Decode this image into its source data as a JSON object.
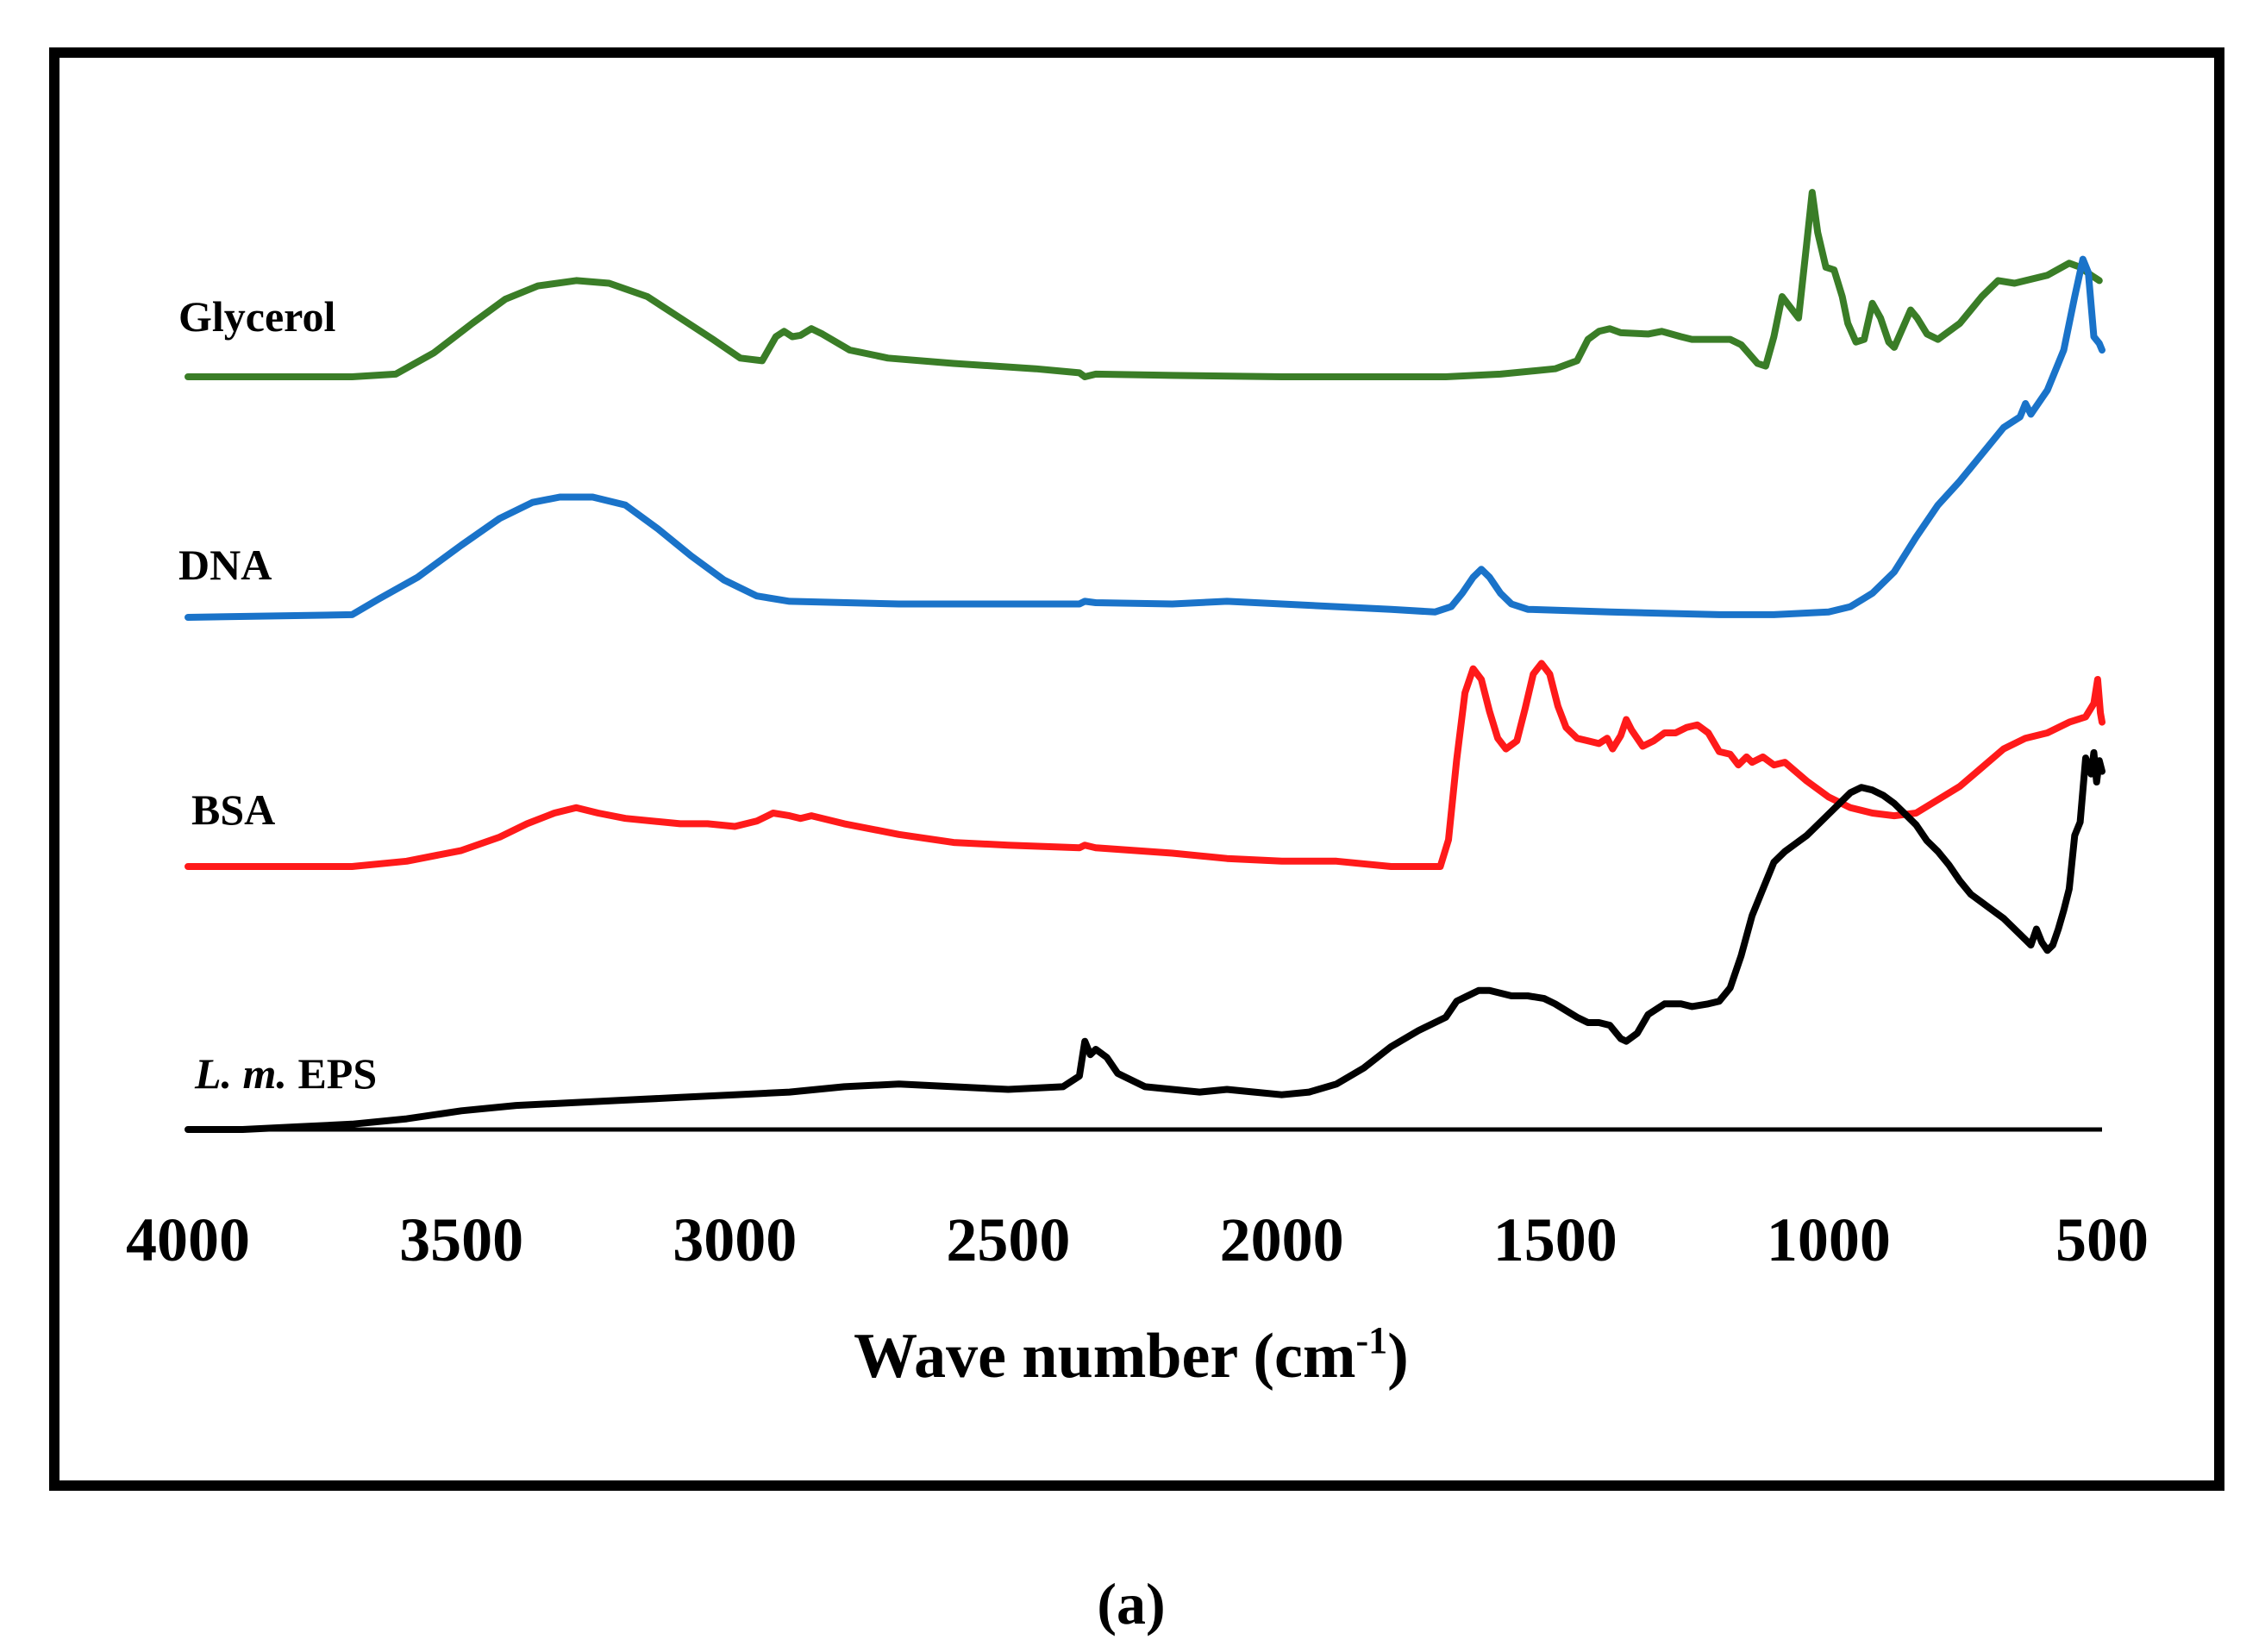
{
  "chart_data": {
    "type": "line",
    "title": "",
    "xlabel": "Wave number (cm-1)",
    "xlabel_main": "Wave number (cm",
    "xlabel_sup": "-1",
    "xlabel_close": ")",
    "ylabel": "",
    "xlim": [
      4000,
      500
    ],
    "x_reversed": true,
    "y_axis_shown": false,
    "grid": false,
    "legend": "inline-left",
    "panel_label": "(a)",
    "xticks": [
      4000,
      3500,
      3000,
      2500,
      2000,
      1500,
      1000,
      500
    ],
    "xtick_labels": [
      "4000",
      "3500",
      "3000",
      "2500",
      "2000",
      "1500",
      "1000",
      "500"
    ],
    "series": [
      {
        "name": "Glycerol",
        "color": "#3a7d27",
        "baseline": 0,
        "points": [
          [
            4000,
            0
          ],
          [
            3700,
            0
          ],
          [
            3620,
            2
          ],
          [
            3550,
            18
          ],
          [
            3480,
            40
          ],
          [
            3420,
            58
          ],
          [
            3360,
            68
          ],
          [
            3290,
            72
          ],
          [
            3230,
            70
          ],
          [
            3160,
            60
          ],
          [
            3100,
            44
          ],
          [
            3040,
            28
          ],
          [
            2990,
            14
          ],
          [
            2950,
            12
          ],
          [
            2925,
            30
          ],
          [
            2910,
            34
          ],
          [
            2895,
            30
          ],
          [
            2880,
            31
          ],
          [
            2860,
            36
          ],
          [
            2840,
            32
          ],
          [
            2790,
            20
          ],
          [
            2720,
            14
          ],
          [
            2600,
            10
          ],
          [
            2450,
            6
          ],
          [
            2370,
            3
          ],
          [
            2360,
            0
          ],
          [
            2340,
            2
          ],
          [
            2200,
            1
          ],
          [
            2000,
            0
          ],
          [
            1800,
            0
          ],
          [
            1700,
            0
          ],
          [
            1600,
            2
          ],
          [
            1500,
            6
          ],
          [
            1460,
            12
          ],
          [
            1440,
            28
          ],
          [
            1420,
            34
          ],
          [
            1400,
            36
          ],
          [
            1380,
            33
          ],
          [
            1330,
            32
          ],
          [
            1305,
            34
          ],
          [
            1270,
            30
          ],
          [
            1250,
            28
          ],
          [
            1210,
            28
          ],
          [
            1180,
            28
          ],
          [
            1160,
            24
          ],
          [
            1130,
            10
          ],
          [
            1115,
            8
          ],
          [
            1100,
            30
          ],
          [
            1085,
            60
          ],
          [
            1070,
            52
          ],
          [
            1055,
            44
          ],
          [
            1040,
            100
          ],
          [
            1030,
            138
          ],
          [
            1020,
            108
          ],
          [
            1005,
            82
          ],
          [
            990,
            80
          ],
          [
            975,
            60
          ],
          [
            965,
            40
          ],
          [
            950,
            26
          ],
          [
            935,
            28
          ],
          [
            920,
            55
          ],
          [
            905,
            44
          ],
          [
            890,
            26
          ],
          [
            880,
            22
          ],
          [
            865,
            36
          ],
          [
            850,
            50
          ],
          [
            838,
            44
          ],
          [
            820,
            32
          ],
          [
            800,
            28
          ],
          [
            760,
            40
          ],
          [
            720,
            60
          ],
          [
            690,
            72
          ],
          [
            660,
            70
          ],
          [
            600,
            76
          ],
          [
            560,
            85
          ],
          [
            540,
            82
          ],
          [
            520,
            76
          ],
          [
            505,
            72
          ]
        ]
      },
      {
        "name": "DNA",
        "color": "#1a73c9",
        "baseline": 0,
        "points": [
          [
            4000,
            0
          ],
          [
            3700,
            2
          ],
          [
            3650,
            14
          ],
          [
            3580,
            30
          ],
          [
            3500,
            54
          ],
          [
            3430,
            74
          ],
          [
            3370,
            86
          ],
          [
            3320,
            90
          ],
          [
            3260,
            90
          ],
          [
            3200,
            84
          ],
          [
            3140,
            66
          ],
          [
            3080,
            46
          ],
          [
            3020,
            28
          ],
          [
            2960,
            16
          ],
          [
            2900,
            12
          ],
          [
            2700,
            10
          ],
          [
            2500,
            10
          ],
          [
            2370,
            10
          ],
          [
            2360,
            12
          ],
          [
            2340,
            11
          ],
          [
            2200,
            10
          ],
          [
            2100,
            12
          ],
          [
            2000,
            10
          ],
          [
            1800,
            6
          ],
          [
            1720,
            4
          ],
          [
            1690,
            8
          ],
          [
            1670,
            18
          ],
          [
            1650,
            30
          ],
          [
            1635,
            36
          ],
          [
            1620,
            30
          ],
          [
            1600,
            18
          ],
          [
            1580,
            10
          ],
          [
            1550,
            6
          ],
          [
            1400,
            4
          ],
          [
            1200,
            2
          ],
          [
            1100,
            2
          ],
          [
            1000,
            4
          ],
          [
            960,
            8
          ],
          [
            920,
            18
          ],
          [
            880,
            34
          ],
          [
            840,
            60
          ],
          [
            800,
            84
          ],
          [
            760,
            102
          ],
          [
            720,
            122
          ],
          [
            680,
            142
          ],
          [
            650,
            150
          ],
          [
            640,
            160
          ],
          [
            630,
            152
          ],
          [
            600,
            170
          ],
          [
            570,
            200
          ],
          [
            550,
            240
          ],
          [
            535,
            268
          ],
          [
            525,
            258
          ],
          [
            515,
            210
          ],
          [
            505,
            205
          ],
          [
            500,
            200
          ]
        ]
      },
      {
        "name": "BSA",
        "color": "#ff1a1a",
        "baseline": 0,
        "points": [
          [
            4000,
            0
          ],
          [
            3900,
            0
          ],
          [
            3700,
            0
          ],
          [
            3600,
            4
          ],
          [
            3500,
            12
          ],
          [
            3430,
            22
          ],
          [
            3380,
            32
          ],
          [
            3330,
            40
          ],
          [
            3290,
            44
          ],
          [
            3250,
            40
          ],
          [
            3200,
            36
          ],
          [
            3100,
            32
          ],
          [
            3050,
            32
          ],
          [
            3000,
            30
          ],
          [
            2960,
            34
          ],
          [
            2930,
            40
          ],
          [
            2900,
            38
          ],
          [
            2880,
            36
          ],
          [
            2860,
            38
          ],
          [
            2800,
            32
          ],
          [
            2700,
            24
          ],
          [
            2600,
            18
          ],
          [
            2500,
            16
          ],
          [
            2370,
            14
          ],
          [
            2360,
            16
          ],
          [
            2340,
            14
          ],
          [
            2200,
            10
          ],
          [
            2100,
            6
          ],
          [
            2000,
            4
          ],
          [
            1900,
            4
          ],
          [
            1800,
            0
          ],
          [
            1710,
            0
          ],
          [
            1695,
            20
          ],
          [
            1680,
            80
          ],
          [
            1665,
            130
          ],
          [
            1650,
            148
          ],
          [
            1635,
            140
          ],
          [
            1620,
            116
          ],
          [
            1605,
            96
          ],
          [
            1590,
            88
          ],
          [
            1570,
            94
          ],
          [
            1555,
            118
          ],
          [
            1540,
            144
          ],
          [
            1525,
            152
          ],
          [
            1510,
            144
          ],
          [
            1495,
            120
          ],
          [
            1480,
            104
          ],
          [
            1460,
            96
          ],
          [
            1440,
            94
          ],
          [
            1420,
            92
          ],
          [
            1405,
            96
          ],
          [
            1395,
            88
          ],
          [
            1380,
            98
          ],
          [
            1370,
            110
          ],
          [
            1360,
            102
          ],
          [
            1340,
            90
          ],
          [
            1320,
            94
          ],
          [
            1300,
            100
          ],
          [
            1280,
            100
          ],
          [
            1260,
            104
          ],
          [
            1240,
            106
          ],
          [
            1220,
            100
          ],
          [
            1200,
            86
          ],
          [
            1180,
            84
          ],
          [
            1165,
            76
          ],
          [
            1150,
            82
          ],
          [
            1140,
            78
          ],
          [
            1120,
            82
          ],
          [
            1100,
            76
          ],
          [
            1080,
            78
          ],
          [
            1040,
            64
          ],
          [
            1000,
            52
          ],
          [
            960,
            44
          ],
          [
            920,
            40
          ],
          [
            880,
            38
          ],
          [
            840,
            40
          ],
          [
            800,
            50
          ],
          [
            760,
            60
          ],
          [
            720,
            74
          ],
          [
            680,
            88
          ],
          [
            640,
            96
          ],
          [
            600,
            100
          ],
          [
            560,
            108
          ],
          [
            530,
            112
          ],
          [
            515,
            122
          ],
          [
            508,
            140
          ],
          [
            503,
            115
          ],
          [
            500,
            108
          ]
        ]
      },
      {
        "name": "L. m. EPS",
        "name_italic": "L. m.",
        "name_rest": " EPS",
        "color": "#000000",
        "baseline": 0,
        "points": [
          [
            4000,
            0
          ],
          [
            3900,
            0
          ],
          [
            3800,
            2
          ],
          [
            3700,
            4
          ],
          [
            3600,
            8
          ],
          [
            3500,
            14
          ],
          [
            3400,
            18
          ],
          [
            3300,
            20
          ],
          [
            3200,
            22
          ],
          [
            3100,
            24
          ],
          [
            3000,
            26
          ],
          [
            2900,
            28
          ],
          [
            2800,
            32
          ],
          [
            2700,
            34
          ],
          [
            2600,
            32
          ],
          [
            2500,
            30
          ],
          [
            2400,
            32
          ],
          [
            2370,
            40
          ],
          [
            2360,
            66
          ],
          [
            2350,
            56
          ],
          [
            2340,
            60
          ],
          [
            2320,
            54
          ],
          [
            2300,
            42
          ],
          [
            2280,
            38
          ],
          [
            2250,
            32
          ],
          [
            2200,
            30
          ],
          [
            2150,
            28
          ],
          [
            2100,
            30
          ],
          [
            2050,
            28
          ],
          [
            2000,
            26
          ],
          [
            1950,
            28
          ],
          [
            1900,
            34
          ],
          [
            1850,
            46
          ],
          [
            1800,
            62
          ],
          [
            1750,
            74
          ],
          [
            1700,
            84
          ],
          [
            1680,
            96
          ],
          [
            1660,
            100
          ],
          [
            1640,
            104
          ],
          [
            1620,
            104
          ],
          [
            1600,
            102
          ],
          [
            1580,
            100
          ],
          [
            1550,
            100
          ],
          [
            1520,
            98
          ],
          [
            1500,
            94
          ],
          [
            1460,
            84
          ],
          [
            1440,
            80
          ],
          [
            1420,
            80
          ],
          [
            1400,
            78
          ],
          [
            1380,
            68
          ],
          [
            1370,
            66
          ],
          [
            1350,
            72
          ],
          [
            1330,
            86
          ],
          [
            1300,
            94
          ],
          [
            1270,
            94
          ],
          [
            1250,
            92
          ],
          [
            1220,
            94
          ],
          [
            1200,
            96
          ],
          [
            1180,
            106
          ],
          [
            1160,
            130
          ],
          [
            1140,
            160
          ],
          [
            1120,
            180
          ],
          [
            1100,
            200
          ],
          [
            1080,
            208
          ],
          [
            1060,
            214
          ],
          [
            1040,
            220
          ],
          [
            1020,
            228
          ],
          [
            1000,
            236
          ],
          [
            980,
            244
          ],
          [
            960,
            252
          ],
          [
            940,
            256
          ],
          [
            920,
            254
          ],
          [
            900,
            250
          ],
          [
            880,
            244
          ],
          [
            860,
            236
          ],
          [
            840,
            228
          ],
          [
            820,
            216
          ],
          [
            800,
            208
          ],
          [
            780,
            198
          ],
          [
            760,
            186
          ],
          [
            740,
            176
          ],
          [
            720,
            170
          ],
          [
            700,
            164
          ],
          [
            680,
            158
          ],
          [
            660,
            150
          ],
          [
            640,
            142
          ],
          [
            630,
            138
          ],
          [
            620,
            150
          ],
          [
            610,
            140
          ],
          [
            600,
            134
          ],
          [
            590,
            138
          ],
          [
            580,
            150
          ],
          [
            570,
            164
          ],
          [
            560,
            180
          ],
          [
            550,
            220
          ],
          [
            540,
            230
          ],
          [
            530,
            278
          ],
          [
            520,
            266
          ],
          [
            515,
            282
          ],
          [
            510,
            260
          ],
          [
            505,
            276
          ],
          [
            500,
            268
          ]
        ]
      }
    ]
  }
}
